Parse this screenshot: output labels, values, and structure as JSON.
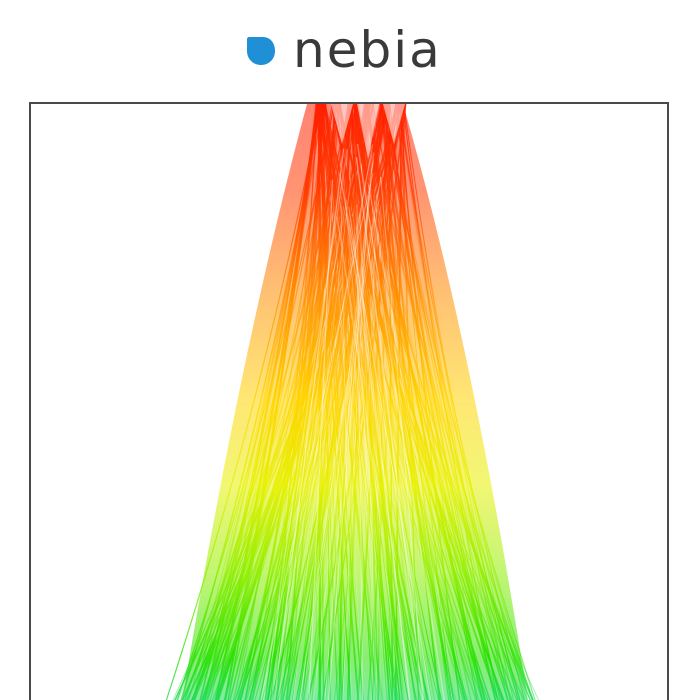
{
  "brand": {
    "name": "nebia",
    "logo_icon": "droplet-icon",
    "colors": {
      "logo": "#1f90d6",
      "text": "#3a3a3a"
    }
  },
  "visualization": {
    "frame_color": "#4a4a4a",
    "background": "#ffffff",
    "color_scale": [
      "#ff1e00",
      "#ff7a00",
      "#ffd000",
      "#e6f200",
      "#7ff000",
      "#1ee600",
      "#14d8a0"
    ]
  }
}
